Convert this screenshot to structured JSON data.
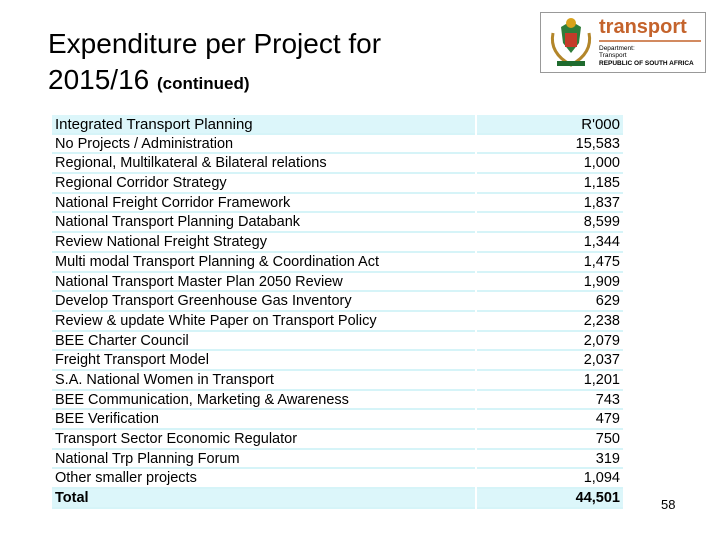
{
  "title": {
    "main": "Expenditure per Project for 2015/16",
    "suffix": "(continued)"
  },
  "logo": {
    "word": "transport",
    "line1": "Department:",
    "line2": "Transport",
    "line3": "REPUBLIC OF SOUTH AFRICA"
  },
  "table": {
    "header": [
      "Integrated Transport Planning",
      "R'000"
    ],
    "rows": [
      [
        "No Projects / Administration",
        "15,583"
      ],
      [
        "Regional, Multilkateral & Bilateral relations",
        "1,000"
      ],
      [
        "Regional Corridor Strategy",
        "1,185"
      ],
      [
        "National Freight Corridor Framework",
        "1,837"
      ],
      [
        "National Transport Planning Databank",
        "8,599"
      ],
      [
        "Review National Freight Strategy",
        "1,344"
      ],
      [
        "Multi modal Transport Planning & Coordination Act",
        "1,475"
      ],
      [
        "National Transport Master Plan 2050 Review",
        "1,909"
      ],
      [
        "Develop Transport Greenhouse Gas Inventory",
        "629"
      ],
      [
        "Review & update White Paper on Transport Policy",
        "2,238"
      ],
      [
        "BEE Charter Council",
        "2,079"
      ],
      [
        "Freight Transport Model",
        "2,037"
      ],
      [
        "S.A. National Women in Transport",
        "1,201"
      ],
      [
        "BEE Communication, Marketing & Awareness",
        "743"
      ],
      [
        "BEE Verification",
        "479"
      ],
      [
        "Transport Sector Economic Regulator",
        "750"
      ],
      [
        "National Trp Planning Forum",
        "319"
      ],
      [
        "Other smaller projects",
        "1,094"
      ]
    ],
    "total": [
      "Total",
      "44,501"
    ]
  },
  "page_number": "58"
}
